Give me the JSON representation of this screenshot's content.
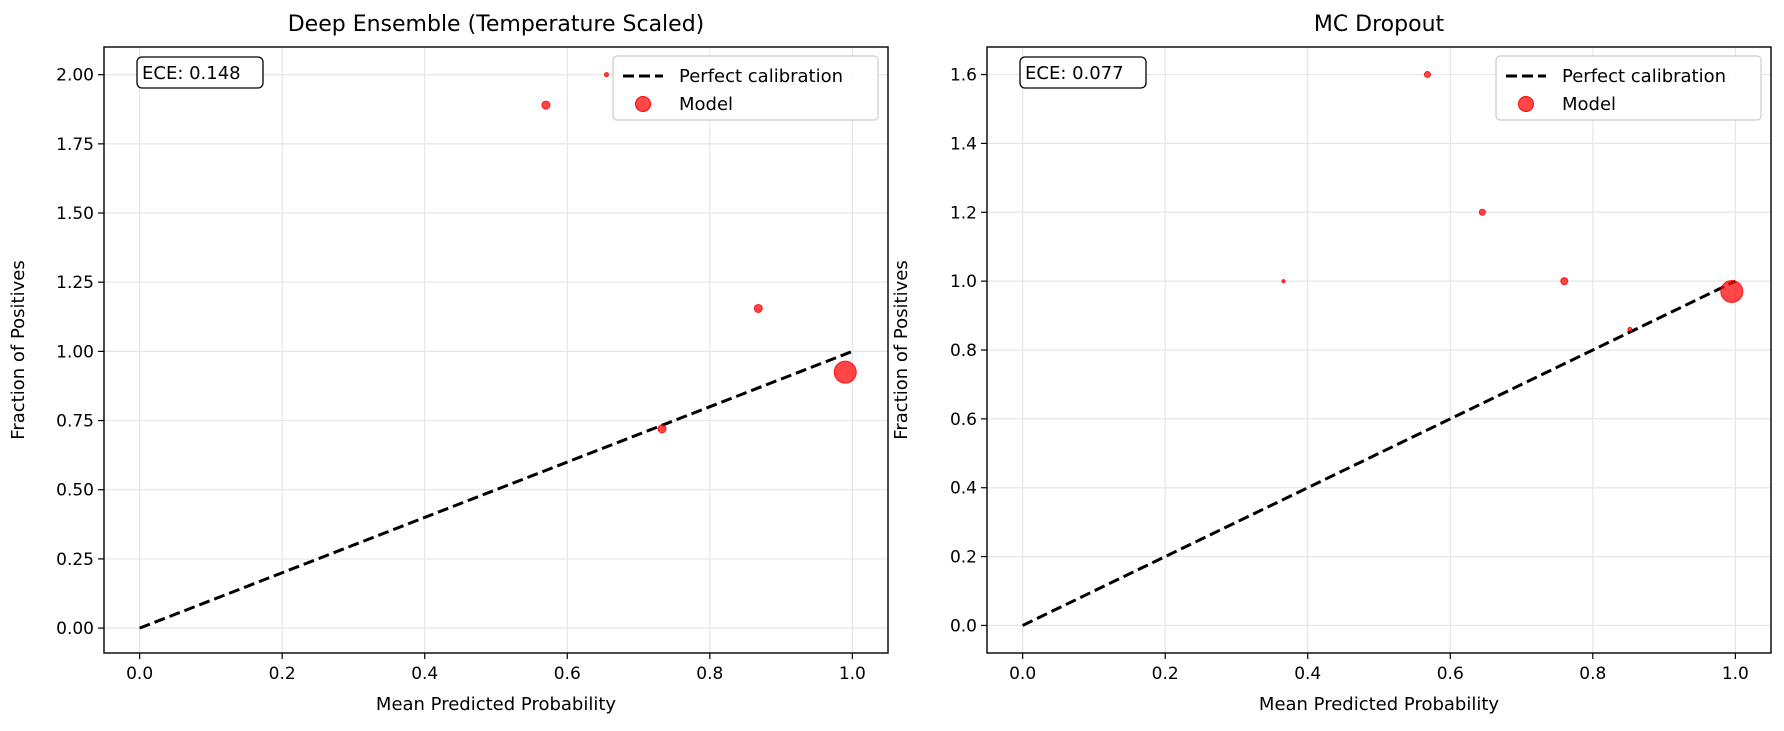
{
  "chart_data": [
    {
      "type": "scatter",
      "title": "Deep Ensemble (Temperature Scaled)",
      "xlabel": "Mean Predicted Probability",
      "ylabel": "Fraction of Positives",
      "xlim": [
        -0.05,
        1.05
      ],
      "ylim": [
        -0.09,
        2.1
      ],
      "xticks": [
        0.0,
        0.2,
        0.4,
        0.6,
        0.8,
        1.0
      ],
      "xtick_labels": [
        "0.0",
        "0.2",
        "0.4",
        "0.6",
        "0.8",
        "1.0"
      ],
      "yticks": [
        0.0,
        0.25,
        0.5,
        0.75,
        1.0,
        1.25,
        1.5,
        1.75,
        2.0
      ],
      "ytick_labels": [
        "0.00",
        "0.25",
        "0.50",
        "0.75",
        "1.00",
        "1.25",
        "1.50",
        "1.75",
        "2.00"
      ],
      "grid": true,
      "legend_position": "top-right",
      "ece_label": "ECE: 0.148",
      "series": [
        {
          "name": "Perfect calibration",
          "kind": "line",
          "style": "dashed",
          "color": "#000000",
          "x": [
            0,
            1
          ],
          "y": [
            0,
            1
          ]
        },
        {
          "name": "Model",
          "kind": "scatter",
          "color": "#ff0000",
          "x": [
            0.57,
            0.655,
            0.733,
            0.868,
            0.99
          ],
          "y": [
            1.89,
            2.0,
            0.72,
            1.155,
            0.925
          ],
          "sizes": [
            4,
            2,
            4,
            4,
            11
          ]
        }
      ]
    },
    {
      "type": "scatter",
      "title": "MC Dropout",
      "xlabel": "Mean Predicted Probability",
      "ylabel": "Fraction of Positives",
      "xlim": [
        -0.05,
        1.05
      ],
      "ylim": [
        -0.08,
        1.68
      ],
      "xticks": [
        0.0,
        0.2,
        0.4,
        0.6,
        0.8,
        1.0
      ],
      "xtick_labels": [
        "0.0",
        "0.2",
        "0.4",
        "0.6",
        "0.8",
        "1.0"
      ],
      "yticks": [
        0.0,
        0.2,
        0.4,
        0.6,
        0.8,
        1.0,
        1.2,
        1.4,
        1.6
      ],
      "ytick_labels": [
        "0.0",
        "0.2",
        "0.4",
        "0.6",
        "0.8",
        "1.0",
        "1.2",
        "1.4",
        "1.6"
      ],
      "grid": true,
      "legend_position": "top-right",
      "ece_label": "ECE: 0.077",
      "series": [
        {
          "name": "Perfect calibration",
          "kind": "line",
          "style": "dashed",
          "color": "#000000",
          "x": [
            0,
            1
          ],
          "y": [
            0,
            1
          ]
        },
        {
          "name": "Model",
          "kind": "scatter",
          "color": "#ff0000",
          "x": [
            0.366,
            0.568,
            0.645,
            0.76,
            0.852,
            0.995
          ],
          "y": [
            1.0,
            1.6,
            1.2,
            1.0,
            0.86,
            0.97
          ],
          "sizes": [
            1.5,
            3,
            3,
            3.5,
            2,
            11
          ]
        }
      ]
    }
  ]
}
